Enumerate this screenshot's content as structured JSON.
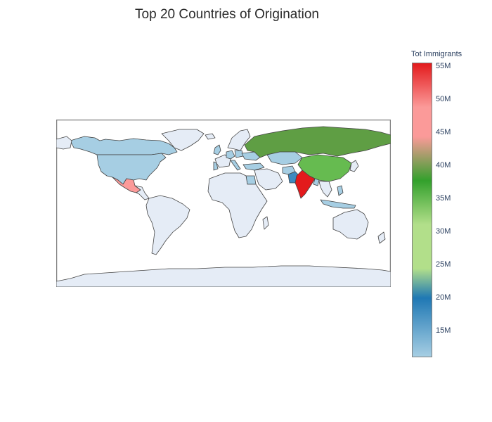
{
  "title": "Top 20 Countries of Origination",
  "colorbar": {
    "title": "Tot Immigrants",
    "min": 11,
    "max": 55.5,
    "ticks": [
      {
        "value": 55,
        "label": "55M"
      },
      {
        "value": 50,
        "label": "50M"
      },
      {
        "value": 45,
        "label": "45M"
      },
      {
        "value": 40,
        "label": "40M"
      },
      {
        "value": 35,
        "label": "35M"
      },
      {
        "value": 30,
        "label": "30M"
      },
      {
        "value": 25,
        "label": "25M"
      },
      {
        "value": 20,
        "label": "20M"
      },
      {
        "value": 15,
        "label": "15M"
      }
    ],
    "colorscale": [
      [
        0.0,
        "#a6cee3"
      ],
      [
        0.2,
        "#1f78b4"
      ],
      [
        0.3,
        "#b2df8a"
      ],
      [
        0.45,
        "#b2df8a"
      ],
      [
        0.6,
        "#33a02c"
      ],
      [
        0.75,
        "#fb9a99"
      ],
      [
        0.85,
        "#fb9a99"
      ],
      [
        1.0,
        "#e31a1c"
      ]
    ]
  },
  "colors": {
    "land": "#e5ecf6",
    "coast": "#444444",
    "frame": "#7f7f7f"
  },
  "chart_data": {
    "type": "choropleth",
    "title": "Top 20 Countries of Origination",
    "projection": "equirectangular",
    "value_units": "millions",
    "series": [
      {
        "country": "India",
        "value": 55
      },
      {
        "country": "Russia",
        "value": 43
      },
      {
        "country": "China",
        "value": 34
      },
      {
        "country": "Mexico",
        "value": 50
      },
      {
        "country": "Pakistan",
        "value": 18
      },
      {
        "country": "Kazakhstan",
        "value": 15
      },
      {
        "country": "Bangladesh",
        "value": 15
      },
      {
        "country": "Ukraine",
        "value": 14
      },
      {
        "country": "United States",
        "value": 13
      },
      {
        "country": "United Kingdom",
        "value": 13
      },
      {
        "country": "Germany",
        "value": 12
      },
      {
        "country": "Afghanistan",
        "value": 12
      },
      {
        "country": "Poland",
        "value": 12
      },
      {
        "country": "Turkey",
        "value": 12
      },
      {
        "country": "Philippines",
        "value": 12
      },
      {
        "country": "Indonesia",
        "value": 12
      },
      {
        "country": "Italy",
        "value": 12
      },
      {
        "country": "Egypt",
        "value": 11
      },
      {
        "country": "Portugal",
        "value": 11
      },
      {
        "country": "Canada",
        "value": 11
      }
    ]
  }
}
